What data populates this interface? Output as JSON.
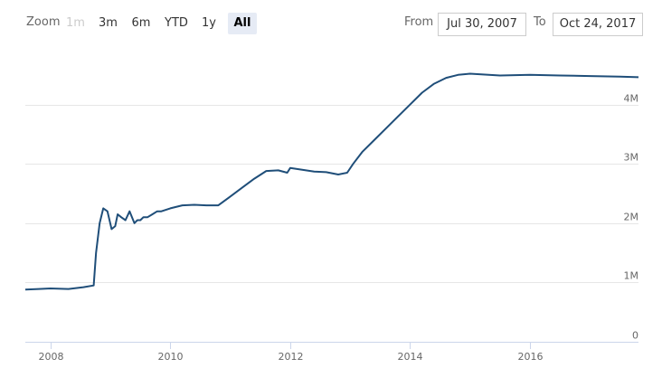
{
  "range_selector": {
    "zoom_label": "Zoom",
    "buttons": [
      {
        "label": "1m",
        "state": "disabled"
      },
      {
        "label": "3m",
        "state": "normal"
      },
      {
        "label": "6m",
        "state": "normal"
      },
      {
        "label": "YTD",
        "state": "normal"
      },
      {
        "label": "1y",
        "state": "normal"
      },
      {
        "label": "All",
        "state": "selected"
      }
    ],
    "from_label": "From",
    "from_value": "Jul 30, 2007",
    "to_label": "To",
    "to_value": "Oct 24, 2017"
  },
  "chart_data": {
    "type": "line",
    "title": "",
    "xlabel": "",
    "ylabel": "",
    "xlim": [
      2007.58,
      2017.81
    ],
    "ylim": [
      0,
      5000000
    ],
    "x_ticks": [
      {
        "value": 2008,
        "label": "2008"
      },
      {
        "value": 2010,
        "label": "2010"
      },
      {
        "value": 2012,
        "label": "2012"
      },
      {
        "value": 2014,
        "label": "2014"
      },
      {
        "value": 2016,
        "label": "2016"
      }
    ],
    "y_ticks": [
      {
        "value": 0,
        "label": "0"
      },
      {
        "value": 1000000,
        "label": "1M"
      },
      {
        "value": 2000000,
        "label": "2M"
      },
      {
        "value": 3000000,
        "label": "3M"
      },
      {
        "value": 4000000,
        "label": "4M"
      }
    ],
    "grid": true,
    "colors": {
      "line": "#1f4e79",
      "grid": "#e6e6e6",
      "axis": "#ccd6eb"
    },
    "series": [
      {
        "x": [
          2007.58,
          2007.8,
          2008.0,
          2008.3,
          2008.55,
          2008.72,
          2008.76,
          2008.82,
          2008.88,
          2008.95,
          2009.02,
          2009.08,
          2009.12,
          2009.18,
          2009.25,
          2009.32,
          2009.4,
          2009.45,
          2009.5,
          2009.55,
          2009.62,
          2009.7,
          2009.78,
          2009.85,
          2010.0,
          2010.2,
          2010.4,
          2010.6,
          2010.8,
          2011.0,
          2011.2,
          2011.4,
          2011.6,
          2011.8,
          2011.95,
          2012.0,
          2012.2,
          2012.4,
          2012.6,
          2012.8,
          2012.95,
          2013.05,
          2013.2,
          2013.4,
          2013.6,
          2013.8,
          2014.0,
          2014.2,
          2014.4,
          2014.6,
          2014.8,
          2015.0,
          2015.5,
          2016.0,
          2016.5,
          2017.0,
          2017.5,
          2017.81
        ],
        "y": [
          880000,
          890000,
          900000,
          890000,
          920000,
          950000,
          1500000,
          2000000,
          2250000,
          2200000,
          1900000,
          1950000,
          2150000,
          2100000,
          2050000,
          2200000,
          2000000,
          2050000,
          2050000,
          2100000,
          2100000,
          2150000,
          2200000,
          2200000,
          2250000,
          2300000,
          2310000,
          2300000,
          2300000,
          2450000,
          2600000,
          2750000,
          2880000,
          2890000,
          2850000,
          2930000,
          2900000,
          2870000,
          2860000,
          2820000,
          2850000,
          3000000,
          3200000,
          3400000,
          3600000,
          3800000,
          4000000,
          4200000,
          4350000,
          4450000,
          4500000,
          4520000,
          4490000,
          4500000,
          4490000,
          4480000,
          4470000,
          4460000
        ]
      }
    ]
  }
}
